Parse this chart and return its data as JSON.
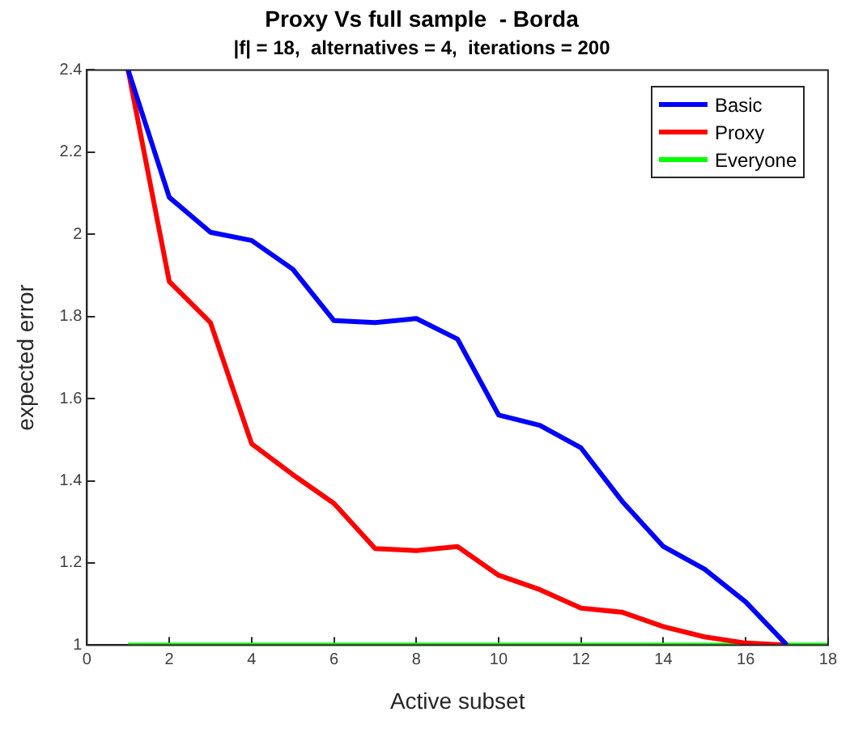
{
  "chart_data": {
    "type": "line",
    "title": "Proxy Vs full sample  - Borda",
    "subtitle": "|f| = 18,  alternatives = 4,  iterations = 200",
    "xlabel": "Active subset",
    "ylabel": "expected error",
    "xlim": [
      0,
      18
    ],
    "xticks": [
      0,
      2,
      4,
      6,
      8,
      10,
      12,
      14,
      16,
      18
    ],
    "ylim": [
      1,
      2.4
    ],
    "yticks": [
      1,
      1.2,
      1.4,
      1.6,
      1.8,
      2,
      2.2,
      2.4
    ],
    "grid": false,
    "legend": "top right",
    "marker": "none",
    "line_style": "solid",
    "series": [
      {
        "name": "Basic",
        "color": "#0000ff",
        "x": [
          1,
          2,
          3,
          4,
          5,
          6,
          7,
          8,
          9,
          10,
          11,
          12,
          13,
          14,
          15,
          16,
          17
        ],
        "values": [
          2.4,
          2.09,
          2.005,
          1.985,
          1.915,
          1.79,
          1.785,
          1.795,
          1.745,
          1.56,
          1.535,
          1.48,
          1.35,
          1.24,
          1.185,
          1.105,
          1.0
        ]
      },
      {
        "name": "Proxy",
        "color": "#ff0000",
        "x": [
          1,
          2,
          3,
          4,
          5,
          6,
          7,
          8,
          9,
          10,
          11,
          12,
          13,
          14,
          15,
          16,
          17
        ],
        "values": [
          2.4,
          1.885,
          1.785,
          1.49,
          1.415,
          1.345,
          1.235,
          1.23,
          1.24,
          1.17,
          1.135,
          1.09,
          1.08,
          1.045,
          1.02,
          1.005,
          1.0
        ]
      },
      {
        "name": "Everyone",
        "color": "#00ff00",
        "x": [
          1,
          18
        ],
        "values": [
          1,
          1
        ]
      }
    ]
  }
}
